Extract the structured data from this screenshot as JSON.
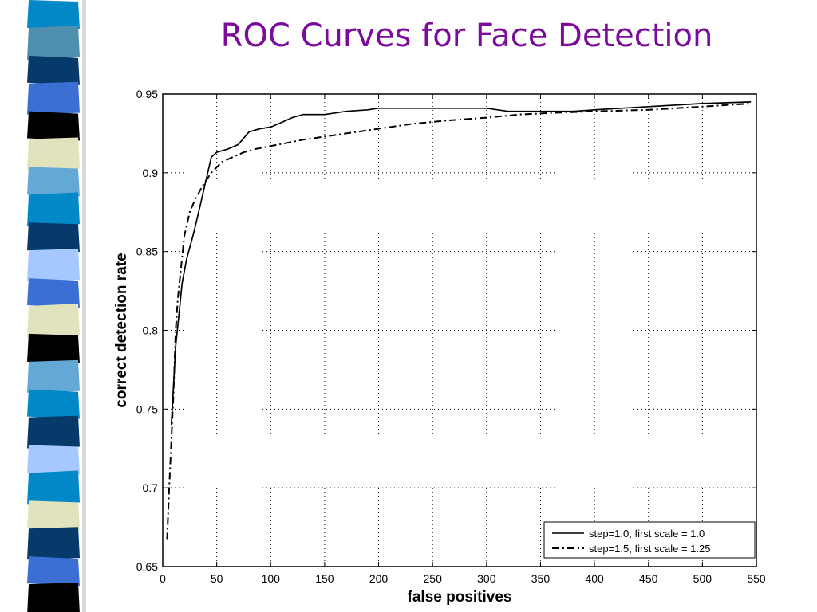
{
  "slide": {
    "title": "ROC Curves for Face Detection",
    "title_color": "#7b0c9b",
    "strip_colors": [
      "#0288c6",
      "#4e8fad",
      "#053a6a",
      "#3b6fd3",
      "#000000",
      "#e1e3bd",
      "#64a8d6",
      "#a4c8ff"
    ]
  },
  "chart_data": {
    "type": "line",
    "title": "",
    "xlabel": "false positives",
    "ylabel": "correct detection rate",
    "xlim": [
      0,
      550
    ],
    "ylim": [
      0.65,
      0.95
    ],
    "xticks": [
      0,
      50,
      100,
      150,
      200,
      250,
      300,
      350,
      400,
      450,
      500,
      550
    ],
    "xtick_labels": [
      "0",
      "50",
      "100",
      "150",
      "200",
      "250",
      "300",
      "350",
      "400",
      "450",
      "500",
      "550"
    ],
    "yticks": [
      0.65,
      0.7,
      0.75,
      0.8,
      0.85,
      0.9,
      0.95
    ],
    "ytick_labels": [
      "0.65",
      "0.7",
      "0.75",
      "0.8",
      "0.85",
      "0.9",
      "0.95"
    ],
    "grid": true,
    "legend_position": "bottom-right",
    "series": [
      {
        "name": "step=1.0, first scale = 1.0",
        "style": "solid",
        "x": [
          8,
          10,
          12,
          15,
          18,
          22,
          28,
          35,
          40,
          45,
          50,
          60,
          70,
          80,
          90,
          100,
          110,
          120,
          130,
          140,
          150,
          170,
          190,
          200,
          230,
          260,
          300,
          320,
          350,
          380,
          400,
          450,
          500,
          545
        ],
        "y": [
          0.74,
          0.765,
          0.79,
          0.81,
          0.83,
          0.845,
          0.86,
          0.88,
          0.895,
          0.91,
          0.913,
          0.915,
          0.918,
          0.926,
          0.928,
          0.929,
          0.932,
          0.935,
          0.937,
          0.937,
          0.937,
          0.939,
          0.94,
          0.941,
          0.941,
          0.941,
          0.941,
          0.939,
          0.939,
          0.939,
          0.94,
          0.942,
          0.944,
          0.945
        ]
      },
      {
        "name": "step=1.5, first scale = 1.25",
        "style": "dashdot",
        "x": [
          4,
          6,
          8,
          10,
          12,
          14,
          17,
          20,
          25,
          30,
          38,
          45,
          55,
          65,
          75,
          85,
          100,
          115,
          130,
          150,
          170,
          200,
          230,
          260,
          300,
          330,
          360,
          400,
          450,
          500,
          545
        ],
        "y": [
          0.667,
          0.7,
          0.73,
          0.76,
          0.8,
          0.82,
          0.84,
          0.86,
          0.875,
          0.883,
          0.893,
          0.9,
          0.907,
          0.91,
          0.913,
          0.915,
          0.917,
          0.919,
          0.921,
          0.923,
          0.925,
          0.928,
          0.931,
          0.933,
          0.935,
          0.937,
          0.938,
          0.939,
          0.94,
          0.942,
          0.944
        ]
      }
    ]
  }
}
